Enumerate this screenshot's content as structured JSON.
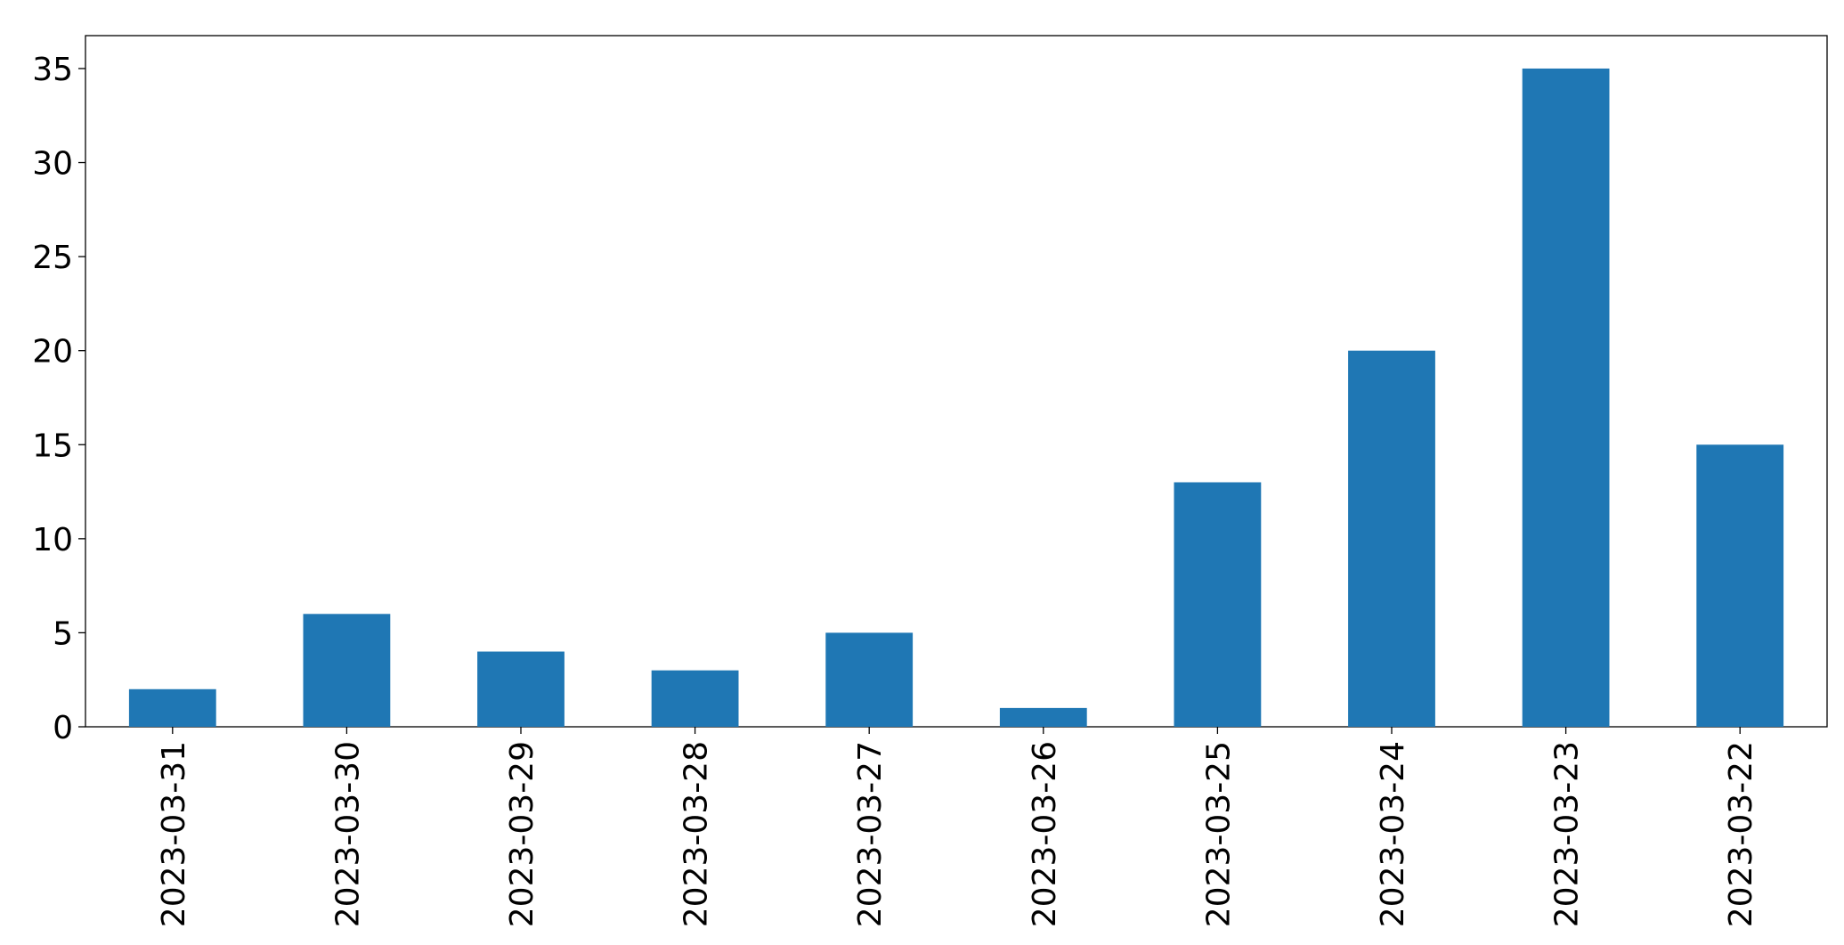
{
  "chart_data": {
    "type": "bar",
    "categories": [
      "2023-03-31",
      "2023-03-30",
      "2023-03-29",
      "2023-03-28",
      "2023-03-27",
      "2023-03-26",
      "2023-03-25",
      "2023-03-24",
      "2023-03-23",
      "2023-03-22"
    ],
    "values": [
      2,
      6,
      4,
      3,
      5,
      1,
      13,
      20,
      35,
      15
    ],
    "color": "#1f77b4",
    "ylim": [
      0,
      36.75
    ],
    "yticks": [
      0,
      5,
      10,
      15,
      20,
      25,
      30,
      35
    ],
    "grid": false
  }
}
